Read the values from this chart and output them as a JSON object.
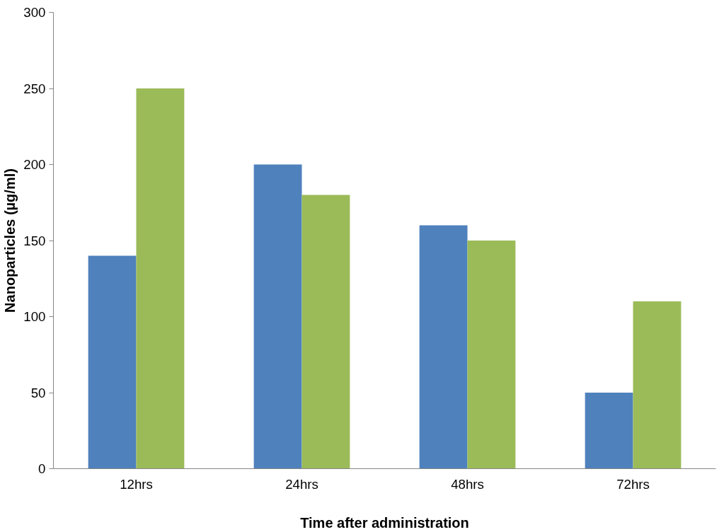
{
  "chart_data": {
    "type": "bar",
    "xlabel": "Time after administration",
    "ylabel": "Nanoparticles (µg/ml)",
    "categories": [
      "12hrs",
      "24hrs",
      "48hrs",
      "72hrs"
    ],
    "series": [
      {
        "color": "#4f81bd",
        "values": [
          140,
          200,
          160,
          50
        ]
      },
      {
        "color": "#9bbb59",
        "values": [
          250,
          180,
          150,
          110
        ]
      }
    ],
    "ylim": [
      0,
      300
    ],
    "yticks": [
      0,
      50,
      100,
      150,
      200,
      250,
      300
    ],
    "grid": false
  }
}
